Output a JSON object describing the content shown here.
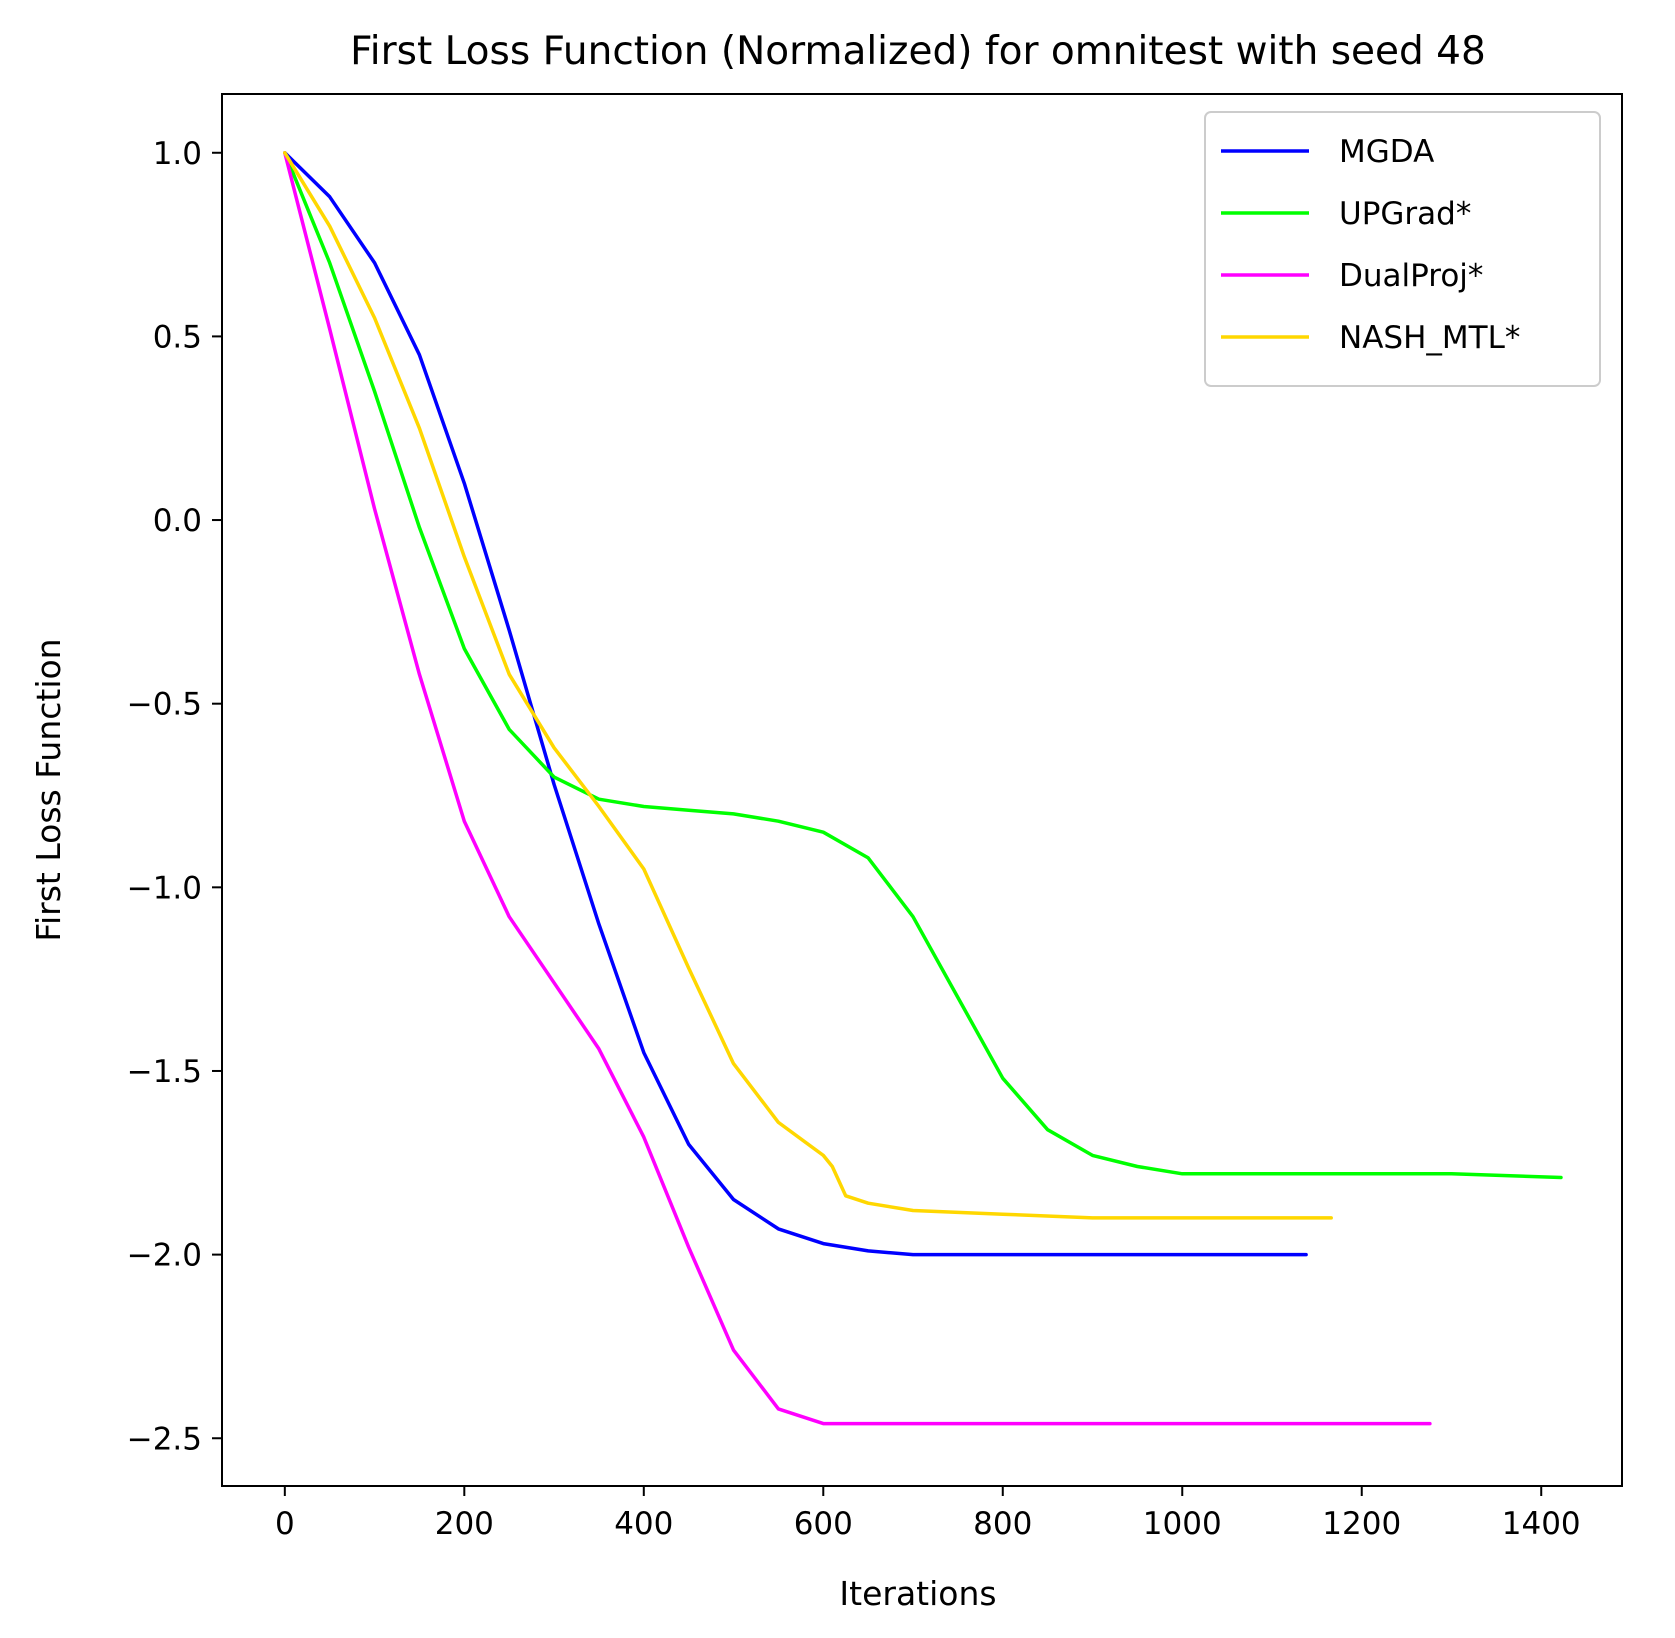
{
  "chart_data": {
    "type": "line",
    "title": "First Loss Function (Normalized) for omnitest with seed 48",
    "xlabel": "Iterations",
    "ylabel": "First Loss Function",
    "xlim": [
      -70,
      1490
    ],
    "ylim": [
      -2.63,
      1.16
    ],
    "xticks": [
      0,
      200,
      400,
      600,
      800,
      1000,
      1200,
      1400
    ],
    "yticks": [
      1.0,
      0.5,
      0.0,
      -0.5,
      -1.0,
      -1.5,
      -2.0,
      -2.5
    ],
    "xtick_labels": [
      "0",
      "200",
      "400",
      "600",
      "800",
      "1000",
      "1200",
      "1400"
    ],
    "ytick_labels": [
      "1.0",
      "0.5",
      "0.0",
      "−0.5",
      "−1.0",
      "−1.5",
      "−2.0",
      "−2.5"
    ],
    "legend_position": "top-right",
    "grid": false,
    "series": [
      {
        "name": "MGDA",
        "color": "#0000ff",
        "points": [
          [
            0,
            1.0
          ],
          [
            50,
            0.88
          ],
          [
            100,
            0.7
          ],
          [
            150,
            0.45
          ],
          [
            200,
            0.1
          ],
          [
            250,
            -0.3
          ],
          [
            300,
            -0.72
          ],
          [
            350,
            -1.1
          ],
          [
            400,
            -1.45
          ],
          [
            450,
            -1.7
          ],
          [
            500,
            -1.85
          ],
          [
            550,
            -1.93
          ],
          [
            600,
            -1.97
          ],
          [
            650,
            -1.99
          ],
          [
            700,
            -2.0
          ],
          [
            800,
            -2.0
          ],
          [
            900,
            -2.0
          ],
          [
            1000,
            -2.0
          ],
          [
            1138,
            -2.0
          ]
        ]
      },
      {
        "name": "UPGrad*",
        "color": "#00ff00",
        "points": [
          [
            0,
            1.0
          ],
          [
            50,
            0.7
          ],
          [
            100,
            0.35
          ],
          [
            150,
            -0.02
          ],
          [
            200,
            -0.35
          ],
          [
            250,
            -0.57
          ],
          [
            300,
            -0.7
          ],
          [
            350,
            -0.76
          ],
          [
            400,
            -0.78
          ],
          [
            450,
            -0.79
          ],
          [
            500,
            -0.8
          ],
          [
            550,
            -0.82
          ],
          [
            600,
            -0.85
          ],
          [
            650,
            -0.92
          ],
          [
            700,
            -1.08
          ],
          [
            750,
            -1.3
          ],
          [
            800,
            -1.52
          ],
          [
            850,
            -1.66
          ],
          [
            900,
            -1.73
          ],
          [
            950,
            -1.76
          ],
          [
            1000,
            -1.78
          ],
          [
            1100,
            -1.78
          ],
          [
            1200,
            -1.78
          ],
          [
            1300,
            -1.78
          ],
          [
            1422,
            -1.79
          ]
        ]
      },
      {
        "name": "DualProj*",
        "color": "#ff00ff",
        "points": [
          [
            0,
            1.0
          ],
          [
            50,
            0.52
          ],
          [
            100,
            0.03
          ],
          [
            150,
            -0.42
          ],
          [
            200,
            -0.82
          ],
          [
            250,
            -1.08
          ],
          [
            300,
            -1.26
          ],
          [
            350,
            -1.44
          ],
          [
            400,
            -1.68
          ],
          [
            450,
            -1.98
          ],
          [
            500,
            -2.26
          ],
          [
            550,
            -2.42
          ],
          [
            600,
            -2.46
          ],
          [
            700,
            -2.46
          ],
          [
            800,
            -2.46
          ],
          [
            1000,
            -2.46
          ],
          [
            1200,
            -2.46
          ],
          [
            1276,
            -2.46
          ]
        ]
      },
      {
        "name": "NASH_MTL*",
        "color": "#ffd700",
        "points": [
          [
            0,
            1.0
          ],
          [
            50,
            0.8
          ],
          [
            100,
            0.55
          ],
          [
            150,
            0.25
          ],
          [
            200,
            -0.1
          ],
          [
            250,
            -0.42
          ],
          [
            300,
            -0.62
          ],
          [
            350,
            -0.78
          ],
          [
            400,
            -0.95
          ],
          [
            450,
            -1.22
          ],
          [
            500,
            -1.48
          ],
          [
            550,
            -1.64
          ],
          [
            600,
            -1.73
          ],
          [
            610,
            -1.76
          ],
          [
            625,
            -1.84
          ],
          [
            650,
            -1.86
          ],
          [
            700,
            -1.88
          ],
          [
            800,
            -1.89
          ],
          [
            900,
            -1.9
          ],
          [
            1000,
            -1.9
          ],
          [
            1100,
            -1.9
          ],
          [
            1166,
            -1.9
          ]
        ]
      }
    ]
  }
}
